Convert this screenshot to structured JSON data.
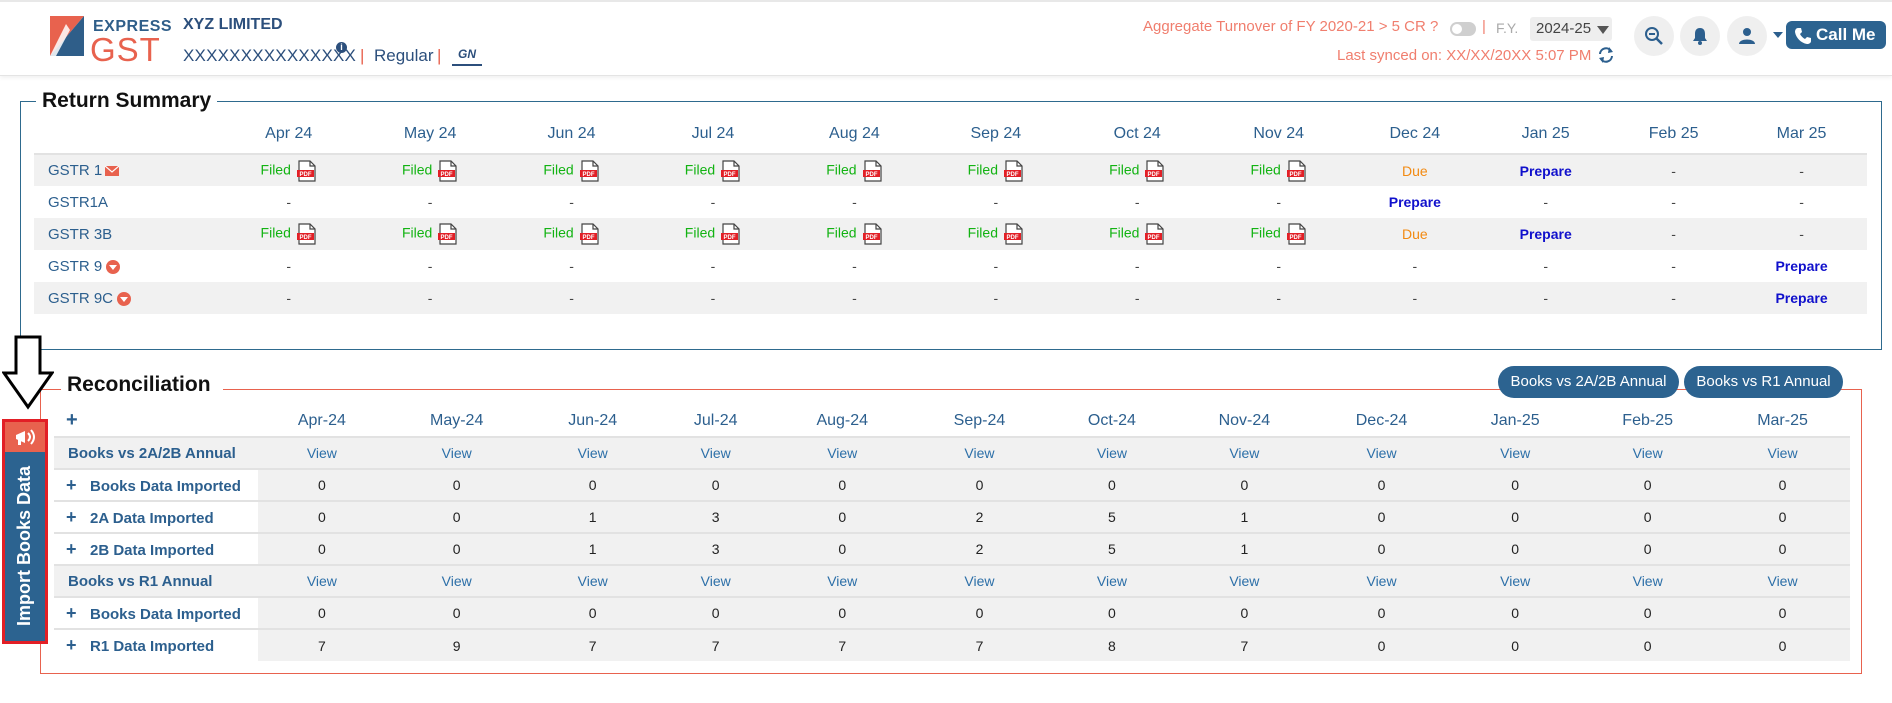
{
  "header": {
    "logo_top": "EXPRESS",
    "logo_main": "GST",
    "company_name": "XYZ LIMITED",
    "gstin": "XXXXXXXXXXXXXXX",
    "info_badge": "i",
    "registration_type": "Regular",
    "gstn_logo": "GN",
    "turnover_question": "Aggregate Turnover of FY 2020-21 > 5 CR ?",
    "fy_label": "F.Y.",
    "fy_value": "2024-25",
    "last_synced": "Last synced on: XX/XX/20XX 5:07 PM",
    "call_me_label": "Call Me",
    "accent_color": "#e8624e",
    "brand_color": "#2c6390"
  },
  "return_summary": {
    "title": "Return Summary",
    "months": [
      "Apr 24",
      "May 24",
      "Jun 24",
      "Jul 24",
      "Aug 24",
      "Sep 24",
      "Oct 24",
      "Nov 24",
      "Dec 24",
      "Jan 25",
      "Feb 25",
      "Mar 25"
    ],
    "rows": [
      {
        "name": "GSTR 1",
        "icon": "mail-icon",
        "cells": [
          "Filed",
          "Filed",
          "Filed",
          "Filed",
          "Filed",
          "Filed",
          "Filed",
          "Filed",
          "Due",
          "Prepare",
          "-",
          "-"
        ]
      },
      {
        "name": "GSTR1A",
        "icon": "",
        "cells": [
          "-",
          "-",
          "-",
          "-",
          "-",
          "-",
          "-",
          "-",
          "Prepare",
          "-",
          "-",
          "-"
        ]
      },
      {
        "name": "GSTR 3B",
        "icon": "",
        "cells": [
          "Filed",
          "Filed",
          "Filed",
          "Filed",
          "Filed",
          "Filed",
          "Filed",
          "Filed",
          "Due",
          "Prepare",
          "-",
          "-"
        ]
      },
      {
        "name": "GSTR 9",
        "icon": "download-icon",
        "cells": [
          "-",
          "-",
          "-",
          "-",
          "-",
          "-",
          "-",
          "-",
          "-",
          "-",
          "-",
          "Prepare"
        ]
      },
      {
        "name": "GSTR 9C",
        "icon": "download-icon",
        "cells": [
          "-",
          "-",
          "-",
          "-",
          "-",
          "-",
          "-",
          "-",
          "-",
          "-",
          "-",
          "Prepare"
        ]
      }
    ]
  },
  "reconciliation": {
    "title": "Reconciliation",
    "pill_a": "Books vs 2A/2B Annual",
    "pill_b": "Books vs R1 Annual",
    "expand_all": "+",
    "months": [
      "Apr-24",
      "May-24",
      "Jun-24",
      "Jul-24",
      "Aug-24",
      "Sep-24",
      "Oct-24",
      "Nov-24",
      "Dec-24",
      "Jan-25",
      "Feb-25",
      "Mar-25"
    ],
    "rows": [
      {
        "name": "Books vs 2A/2B Annual",
        "type": "head",
        "cells": [
          "View",
          "View",
          "View",
          "View",
          "View",
          "View",
          "View",
          "View",
          "View",
          "View",
          "View",
          "View"
        ]
      },
      {
        "name": "Books Data Imported",
        "type": "sub",
        "cells": [
          "0",
          "0",
          "0",
          "0",
          "0",
          "0",
          "0",
          "0",
          "0",
          "0",
          "0",
          "0"
        ]
      },
      {
        "name": "2A Data Imported",
        "type": "sub",
        "cells": [
          "0",
          "0",
          "1",
          "3",
          "0",
          "2",
          "5",
          "1",
          "0",
          "0",
          "0",
          "0"
        ]
      },
      {
        "name": "2B Data Imported",
        "type": "sub",
        "cells": [
          "0",
          "0",
          "1",
          "3",
          "0",
          "2",
          "5",
          "1",
          "0",
          "0",
          "0",
          "0"
        ]
      },
      {
        "name": "Books vs R1 Annual",
        "type": "head",
        "cells": [
          "View",
          "View",
          "View",
          "View",
          "View",
          "View",
          "View",
          "View",
          "View",
          "View",
          "View",
          "View"
        ]
      },
      {
        "name": "Books Data Imported",
        "type": "sub",
        "cells": [
          "0",
          "0",
          "0",
          "0",
          "0",
          "0",
          "0",
          "0",
          "0",
          "0",
          "0",
          "0"
        ]
      },
      {
        "name": "R1 Data Imported",
        "type": "sub",
        "cells": [
          "7",
          "9",
          "7",
          "7",
          "7",
          "7",
          "8",
          "7",
          "0",
          "0",
          "0",
          "0"
        ]
      }
    ]
  },
  "side_tab": {
    "label": "Import Books Data",
    "highlight_color": "#e21f26"
  }
}
